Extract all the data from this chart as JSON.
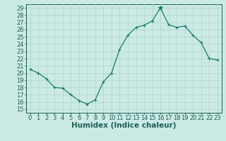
{
  "x": [
    0,
    1,
    2,
    3,
    4,
    5,
    6,
    7,
    8,
    9,
    10,
    11,
    12,
    13,
    14,
    15,
    16,
    17,
    18,
    19,
    20,
    21,
    22,
    23
  ],
  "y": [
    20.5,
    20.0,
    19.2,
    18.0,
    17.9,
    17.0,
    16.2,
    15.7,
    16.3,
    18.8,
    20.0,
    23.3,
    25.2,
    26.3,
    26.6,
    27.2,
    29.0,
    26.7,
    26.3,
    26.5,
    25.2,
    24.2,
    22.0,
    21.8
  ],
  "xlabel": "Humidex (Indice chaleur)",
  "xlim": [
    -0.5,
    23.5
  ],
  "ylim": [
    14.5,
    29.5
  ],
  "yticks": [
    15,
    16,
    17,
    18,
    19,
    20,
    21,
    22,
    23,
    24,
    25,
    26,
    27,
    28,
    29
  ],
  "xticks": [
    0,
    1,
    2,
    3,
    4,
    5,
    6,
    7,
    8,
    9,
    10,
    11,
    12,
    13,
    14,
    15,
    16,
    17,
    18,
    19,
    20,
    21,
    22,
    23
  ],
  "line_color": "#1a7a6e",
  "special_x": 16,
  "special_y": 29.0,
  "bg_color": "#cceae4",
  "grid_color": "#b0d8d0",
  "text_color": "#1a5f56",
  "font_size": 6.0,
  "xlabel_fontsize": 7.5
}
